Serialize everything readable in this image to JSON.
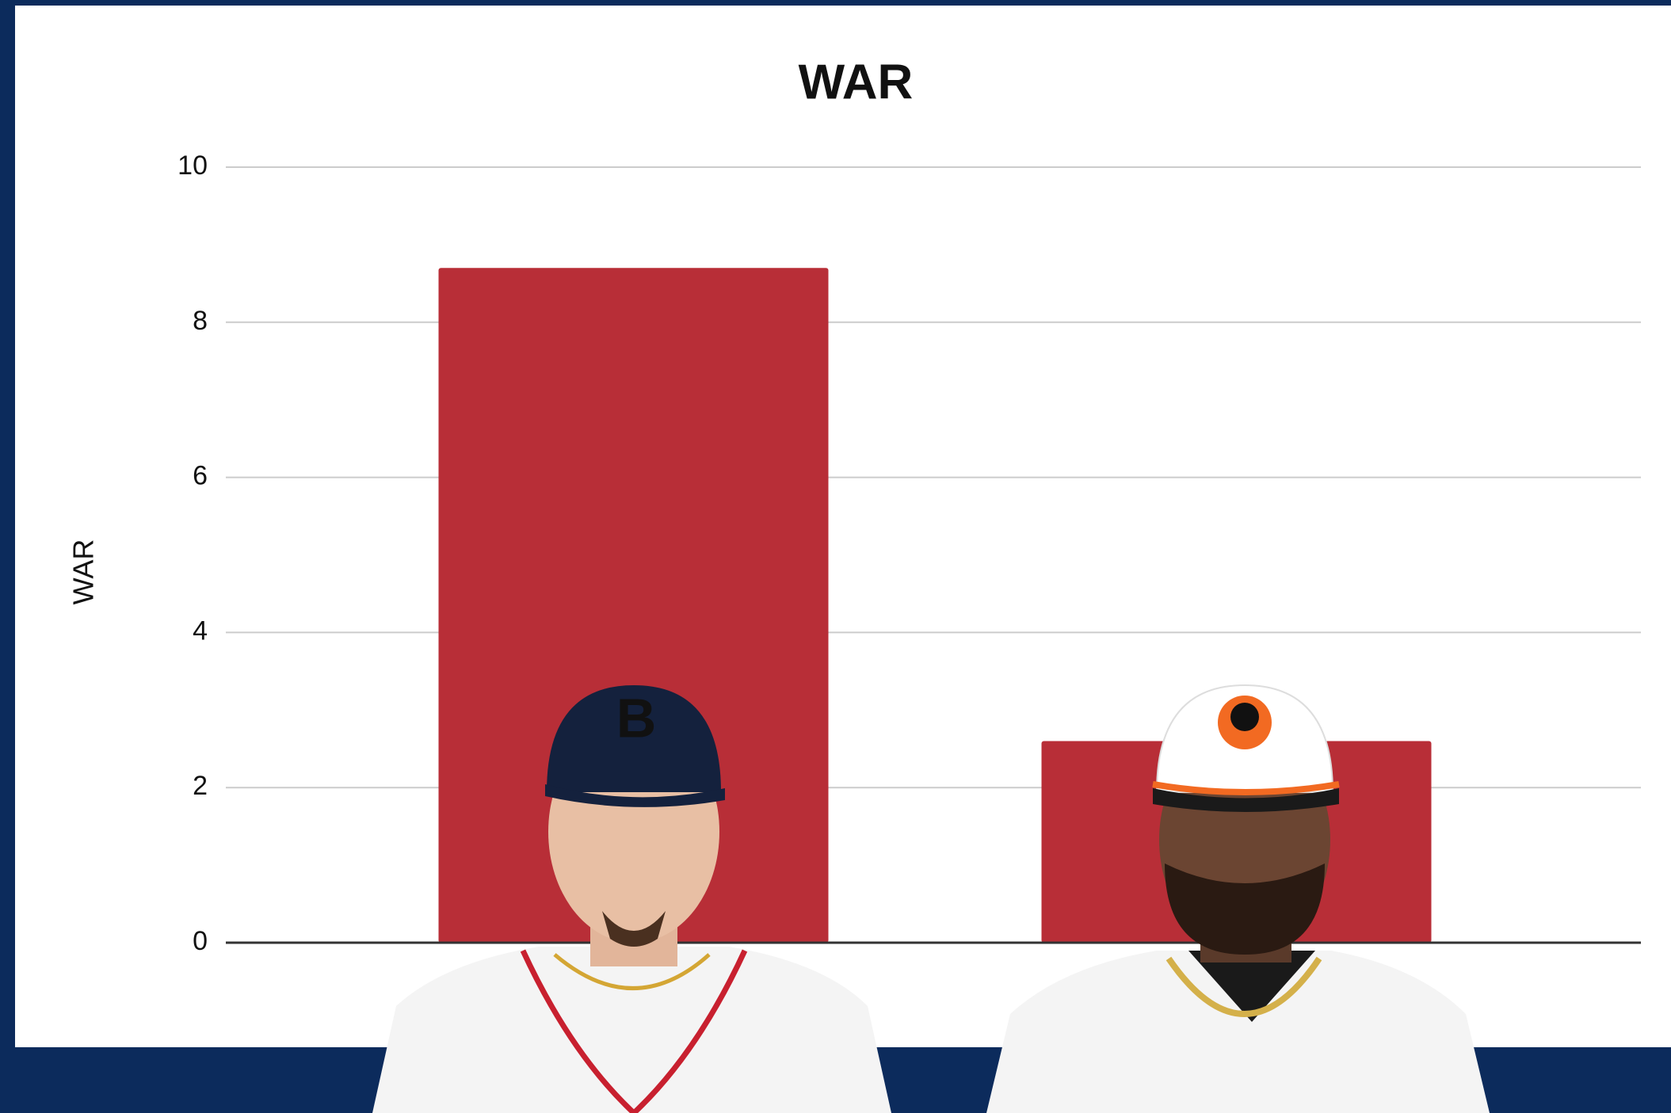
{
  "chart_data": {
    "type": "bar",
    "title": "WAR",
    "y_label": "WAR",
    "categories": [
      null,
      null
    ],
    "values": [
      8.7,
      2.6
    ],
    "color": "#b82e37",
    "ylim": [
      0,
      10
    ],
    "yticks": [
      0,
      2,
      4,
      6,
      8,
      10
    ],
    "grid": true
  }
}
